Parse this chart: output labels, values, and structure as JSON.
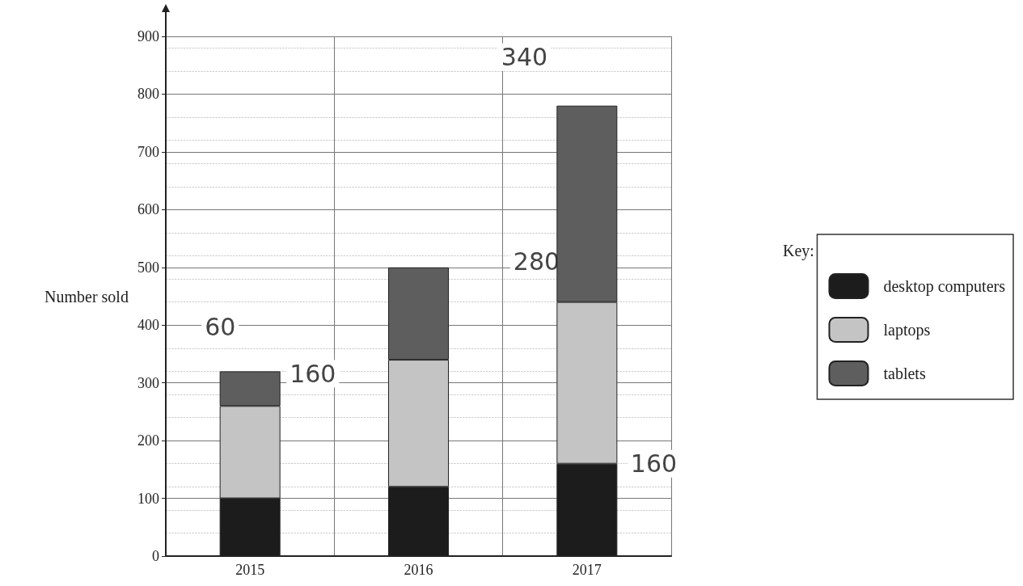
{
  "chart_data": {
    "type": "bar",
    "stacked": true,
    "ylabel": "Number sold",
    "legend_title": "Key:",
    "legend": "right",
    "grid": true,
    "categories": [
      "2015",
      "2016",
      "2017"
    ],
    "series": [
      {
        "name": "desktop computers",
        "color": "#1c1c1c",
        "values": [
          100,
          120,
          160
        ]
      },
      {
        "name": "laptops",
        "color": "#c4c4c4",
        "values": [
          160,
          220,
          280
        ]
      },
      {
        "name": "tablets",
        "color": "#5e5e5e",
        "values": [
          60,
          160,
          340
        ]
      }
    ],
    "ylim": [
      0,
      900
    ],
    "yticks": [
      0,
      100,
      200,
      300,
      400,
      500,
      600,
      700,
      800,
      900
    ],
    "annotations": [
      {
        "text": "60",
        "x": "2015",
        "y": 320
      },
      {
        "text": "160",
        "x": "2015",
        "y": 260
      },
      {
        "text": "280",
        "x": "2017",
        "y": 440
      },
      {
        "text": "340",
        "x": "2017",
        "y": 780
      },
      {
        "text": "160",
        "x": "2017",
        "y": 160
      }
    ]
  }
}
